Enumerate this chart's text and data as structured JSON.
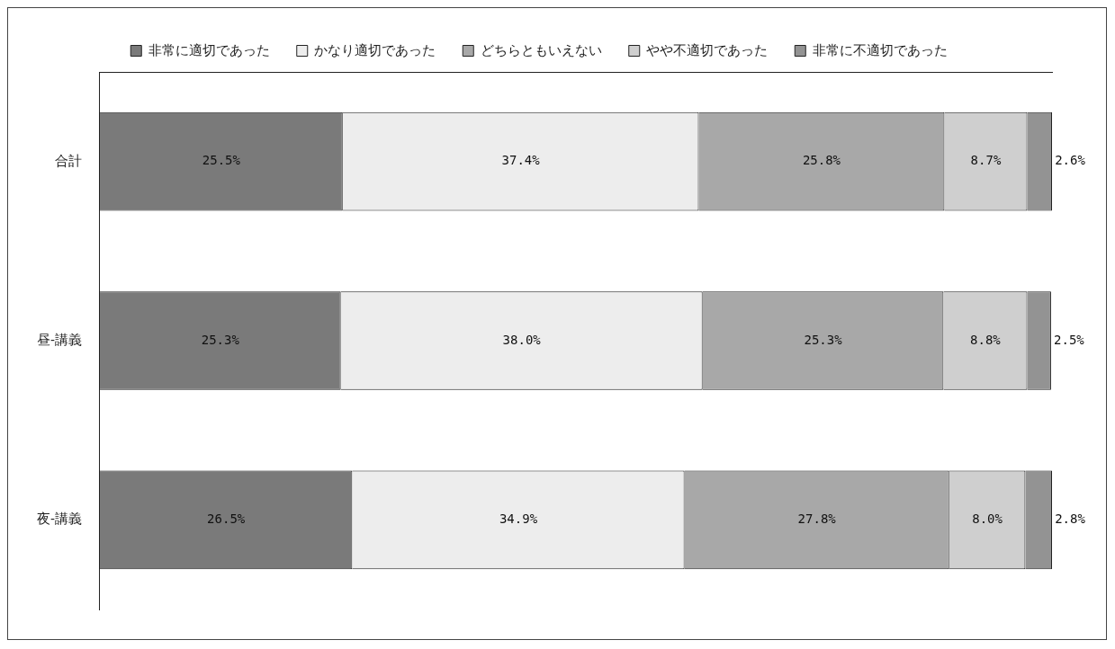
{
  "chart_data": {
    "type": "bar",
    "orientation": "horizontal",
    "stacked": true,
    "categories": [
      "合計",
      "昼-講義",
      "夜-講義"
    ],
    "series": [
      {
        "name": "非常に適切であった",
        "color": "#7a7a7a",
        "values": [
          25.5,
          25.3,
          26.5
        ],
        "value_labels": [
          "25.5%",
          "25.3%",
          "26.5%"
        ]
      },
      {
        "name": "かなり適切であった",
        "color": "#ededed",
        "values": [
          37.4,
          38.0,
          34.9
        ],
        "value_labels": [
          "37.4%",
          "38.0%",
          "34.9%"
        ]
      },
      {
        "name": "どちらともいえない",
        "color": "#a8a8a8",
        "values": [
          25.8,
          25.3,
          27.8
        ],
        "value_labels": [
          "25.8%",
          "25.3%",
          "27.8%"
        ]
      },
      {
        "name": "やや不適切であった",
        "color": "#cfcfcf",
        "values": [
          8.7,
          8.8,
          8.0
        ],
        "value_labels": [
          "8.7%",
          "8.8%",
          "8.0%"
        ]
      },
      {
        "name": "非常に不適切であった",
        "color": "#939393",
        "values": [
          2.6,
          2.5,
          2.8
        ],
        "value_labels": [
          "2.6%",
          "2.5%",
          "2.8%"
        ]
      }
    ],
    "xlim": [
      0,
      100
    ],
    "grid": false,
    "legend": "top",
    "tick_labels": "y"
  }
}
